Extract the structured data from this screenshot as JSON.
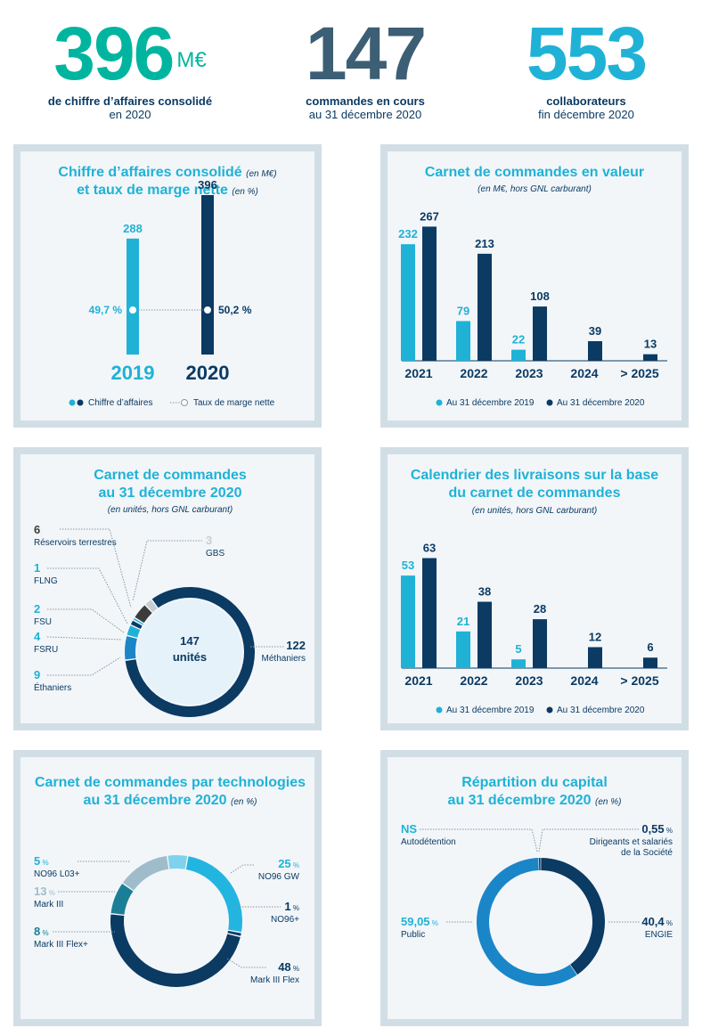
{
  "colors": {
    "teal": "#00b59f",
    "slate": "#3d5f75",
    "cyan": "#1fb2d6",
    "navy": "#0b3a63",
    "light": "#22b5df",
    "grey": "#c7cdd2",
    "dark": "#3c3c3c"
  },
  "kpis": [
    {
      "value": "396",
      "unit": "M€",
      "line1": "de chiffre d’affaires consolidé",
      "line2": "en 2020"
    },
    {
      "value": "147",
      "line1": "commandes en cours",
      "line2": "au 31 décembre 2020"
    },
    {
      "value": "553",
      "line1": "collaborateurs",
      "line2": "fin décembre 2020"
    }
  ],
  "chart_data": [
    {
      "type": "bar",
      "title": "Chiffre d’affaires consolidé",
      "title_unit": "(en M€)",
      "title2": "et taux de marge nette",
      "title2_unit": "(en %)",
      "categories": [
        "2019",
        "2020"
      ],
      "series": [
        {
          "name": "Chiffre d’affaires",
          "values": [
            288,
            396
          ]
        },
        {
          "name": "Taux de marge nette",
          "values": [
            49.7,
            50.2
          ],
          "labels": [
            "49,7 %",
            "50,2 %"
          ]
        }
      ],
      "legend": [
        "Chiffre d’affaires",
        "Taux de marge nette"
      ]
    },
    {
      "type": "bar",
      "title": "Carnet de commandes en valeur",
      "subtitle": "(en M€, hors GNL carburant)",
      "categories": [
        "2021",
        "2022",
        "2023",
        "2024",
        "> 2025"
      ],
      "series": [
        {
          "name": "Au 31 décembre 2019",
          "values": [
            232,
            79,
            22,
            null,
            null
          ]
        },
        {
          "name": "Au 31 décembre 2020",
          "values": [
            267,
            213,
            108,
            39,
            13
          ]
        }
      ]
    },
    {
      "type": "pie",
      "title": "Carnet de commandes",
      "title2": "au 31 décembre 2020",
      "subtitle": "(en unités, hors GNL carburant)",
      "center_value": "147",
      "center_label": "unités",
      "slices": [
        {
          "name": "Méthaniers",
          "value": 122
        },
        {
          "name": "Éthaniers",
          "value": 9
        },
        {
          "name": "FSRU",
          "value": 4
        },
        {
          "name": "FSU",
          "value": 2
        },
        {
          "name": "FLNG",
          "value": 1
        },
        {
          "name": "Réservoirs terrestres",
          "value": 6
        },
        {
          "name": "GBS",
          "value": 3
        }
      ]
    },
    {
      "type": "bar",
      "title": "Calendrier des livraisons sur la base",
      "title2": "du carnet de commandes",
      "subtitle": "(en unités, hors GNL carburant)",
      "categories": [
        "2021",
        "2022",
        "2023",
        "2024",
        "> 2025"
      ],
      "series": [
        {
          "name": "Au 31 décembre 2019",
          "values": [
            53,
            21,
            5,
            null,
            null
          ]
        },
        {
          "name": "Au 31 décembre 2020",
          "values": [
            63,
            38,
            28,
            12,
            6
          ]
        }
      ]
    },
    {
      "type": "pie",
      "title": "Carnet de commandes par technologies",
      "title2": "au 31 décembre 2020",
      "title2_unit": "(en %)",
      "slices": [
        {
          "name": "NO96 GW",
          "value": 25
        },
        {
          "name": "NO96+",
          "value": 1
        },
        {
          "name": "Mark III Flex",
          "value": 48
        },
        {
          "name": "Mark III Flex+",
          "value": 8
        },
        {
          "name": "Mark III",
          "value": 13
        },
        {
          "name": "NO96 L03+",
          "value": 5
        }
      ]
    },
    {
      "type": "pie",
      "title": "Répartition du capital",
      "title2": "au 31 décembre 2020",
      "title2_unit": "(en %)",
      "slices": [
        {
          "name": "ENGIE",
          "value": 40.4,
          "label": "40,4"
        },
        {
          "name": "Public",
          "value": 59.05,
          "label": "59,05"
        },
        {
          "name": "Autodétention",
          "value": 0,
          "label": "NS"
        },
        {
          "name": "Dirigeants et salariés de la Société",
          "value": 0.55,
          "label": "0,55"
        }
      ]
    }
  ]
}
